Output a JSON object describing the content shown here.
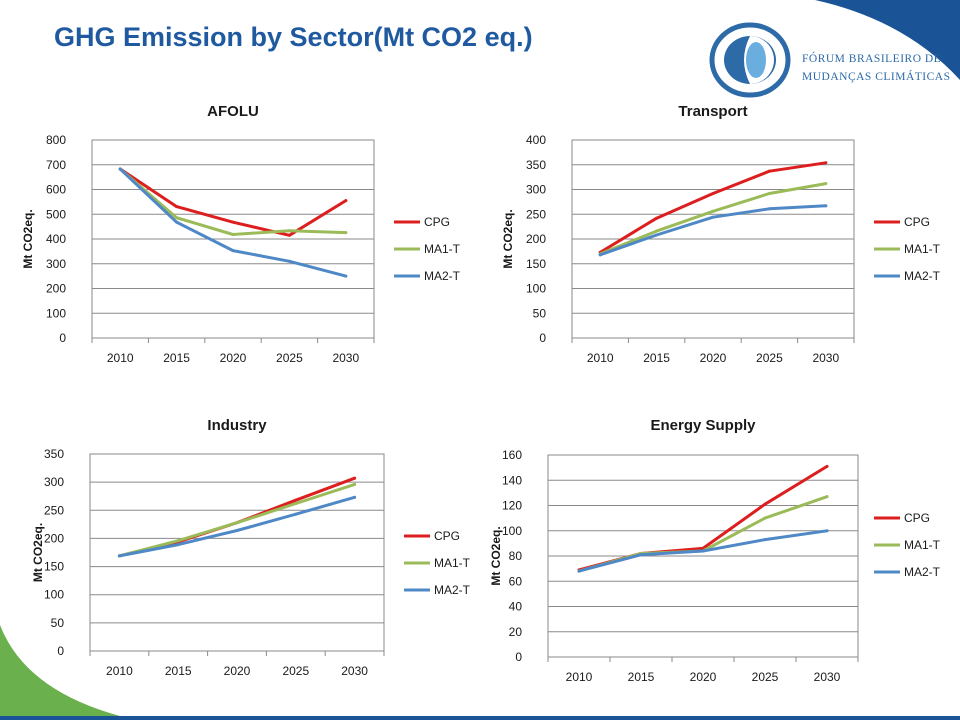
{
  "page": {
    "title": "GHG Emission by Sector(Mt CO2 eq.)",
    "colors": {
      "title": "#1f5aa0",
      "corner_blue": "#1a5496",
      "corner_green": "#6ab04c"
    }
  },
  "logo": {
    "line1": "FÓRUM BRASILEIRO DE",
    "line2": "MUDANÇAS CLIMÁTICAS",
    "colors": {
      "ring": "#2c6aa8",
      "text": "#2c6aa8"
    }
  },
  "series_colors": {
    "CPG": "#dd1e1e",
    "MA1-T": "#9bbb59",
    "MA2-T": "#4f88c6"
  },
  "chart_data": [
    {
      "type": "line",
      "title": "AFOLU",
      "ylabel": "Mt CO2eq.",
      "xlabel": "",
      "categories": [
        "2010",
        "2015",
        "2020",
        "2025",
        "2030"
      ],
      "yticks": [
        "0",
        "100",
        "200",
        "300",
        "400",
        "500",
        "600",
        "700",
        "800"
      ],
      "ylim": [
        0,
        800
      ],
      "grid": true,
      "legend": "right",
      "series": [
        {
          "name": "CPG",
          "values": [
            683,
            531,
            468,
            415,
            555
          ]
        },
        {
          "name": "MA1-T",
          "values": [
            683,
            486,
            418,
            433,
            426
          ]
        },
        {
          "name": "MA2-T",
          "values": [
            683,
            468,
            353,
            310,
            250
          ]
        }
      ]
    },
    {
      "type": "line",
      "title": "Transport",
      "ylabel": "Mt CO2eq.",
      "xlabel": "",
      "categories": [
        "2010",
        "2015",
        "2020",
        "2025",
        "2030"
      ],
      "yticks": [
        "0",
        "50",
        "100",
        "150",
        "200",
        "250",
        "300",
        "350",
        "400"
      ],
      "ylim": [
        0,
        400
      ],
      "grid": true,
      "legend": "right",
      "series": [
        {
          "name": "CPG",
          "values": [
            173,
            242,
            292,
            337,
            354
          ]
        },
        {
          "name": "MA1-T",
          "values": [
            170,
            216,
            256,
            292,
            312
          ]
        },
        {
          "name": "MA2-T",
          "values": [
            168,
            208,
            244,
            261,
            267
          ]
        }
      ]
    },
    {
      "type": "line",
      "title": "Industry",
      "ylabel": "Mt CO2eq.",
      "xlabel": "",
      "categories": [
        "2010",
        "2015",
        "2020",
        "2025",
        "2030"
      ],
      "yticks": [
        "0",
        "50",
        "100",
        "150",
        "200",
        "250",
        "300",
        "350"
      ],
      "ylim": [
        0,
        350
      ],
      "grid": true,
      "legend": "right",
      "series": [
        {
          "name": "CPG",
          "values": [
            169,
            194,
            228,
            268,
            307
          ]
        },
        {
          "name": "MA1-T",
          "values": [
            169,
            196,
            228,
            262,
            296
          ]
        },
        {
          "name": "MA2-T",
          "values": [
            169,
            189,
            214,
            243,
            273
          ]
        }
      ]
    },
    {
      "type": "line",
      "title": "Energy Supply",
      "ylabel": "Mt CO2eq.",
      "xlabel": "",
      "categories": [
        "2010",
        "2015",
        "2020",
        "2025",
        "2030"
      ],
      "yticks": [
        "0",
        "20",
        "40",
        "60",
        "80",
        "100",
        "120",
        "140",
        "160"
      ],
      "ylim": [
        0,
        160
      ],
      "grid": true,
      "legend": "right",
      "series": [
        {
          "name": "CPG",
          "values": [
            69,
            82,
            86,
            121,
            151
          ]
        },
        {
          "name": "MA1-T",
          "values": [
            68,
            82,
            84,
            110,
            127
          ]
        },
        {
          "name": "MA2-T",
          "values": [
            68,
            81,
            84,
            93,
            100
          ]
        }
      ]
    }
  ]
}
